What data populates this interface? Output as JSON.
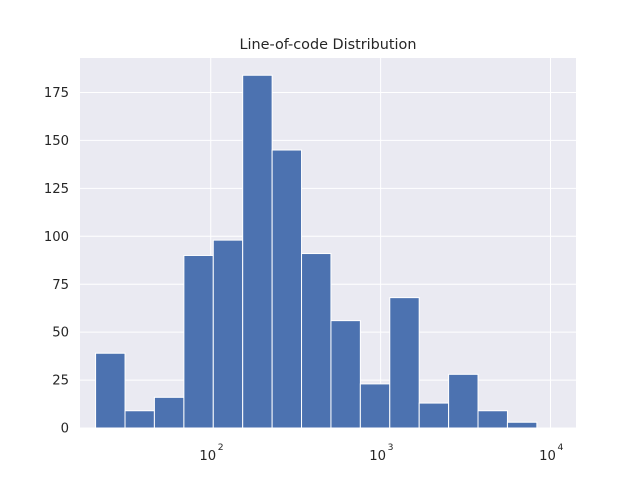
{
  "chart_data": {
    "type": "bar",
    "title": "Line-of-code Distribution",
    "xlabel": "",
    "ylabel": "",
    "x_scale": "log",
    "xlim": [
      17,
      14125
    ],
    "ylim": [
      0,
      193
    ],
    "grid": true,
    "background_color": "#eaeaf2",
    "bar_color": "#4c72b0",
    "grid_color": "#ffffff",
    "y_ticks": [
      0,
      25,
      50,
      75,
      100,
      125,
      150,
      175
    ],
    "x_ticks": [
      {
        "value": 100,
        "base": "10",
        "exp": "2"
      },
      {
        "value": 1000,
        "base": "10",
        "exp": "3"
      },
      {
        "value": 10000,
        "base": "10",
        "exp": "4"
      }
    ],
    "bin_edges": [
      21,
      31.3,
      46.6,
      69.5,
      103.5,
      154.2,
      229.8,
      342.3,
      510,
      759.8,
      1132,
      1686.5,
      2512.8,
      3743.7,
      5577.6,
      8310
    ],
    "values": [
      39,
      9,
      16,
      90,
      98,
      184,
      145,
      91,
      56,
      23,
      68,
      13,
      28,
      9,
      3
    ]
  }
}
